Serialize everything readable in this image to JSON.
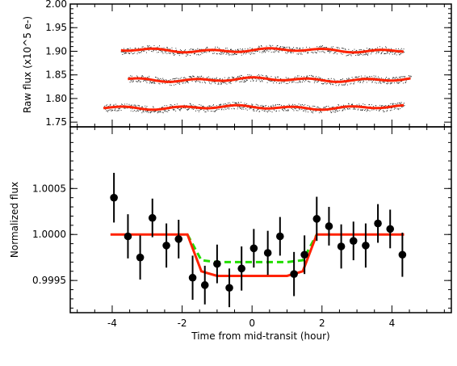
{
  "chart_data": [
    {
      "type": "scatter",
      "panel": "top",
      "ylabel": "Raw flux (x10^5 e-)",
      "ylim": [
        1.74,
        2.0
      ],
      "xlim": [
        -5.2,
        5.7
      ],
      "yticks": [
        "1.75",
        "1.80",
        "1.85",
        "1.90",
        "1.95",
        "2.00"
      ],
      "yticks_values": [
        1.75,
        1.8,
        1.85,
        1.9,
        1.95,
        2.0
      ],
      "series": [
        {
          "x_range": [
            -3.75,
            4.35
          ],
          "y_mean": 1.902
        },
        {
          "x_range": [
            -3.55,
            4.55
          ],
          "y_mean": 1.84
        },
        {
          "x_range": [
            -4.25,
            4.35
          ],
          "y_mean": 1.781
        }
      ],
      "colors": {
        "points": "#000000",
        "model": "#ff2200"
      }
    },
    {
      "type": "scatter",
      "panel": "bottom",
      "xlabel": "Time from mid-transit (hour)",
      "ylabel": "Normalized flux",
      "xlim": [
        -5.2,
        5.7
      ],
      "ylim": [
        0.99915,
        1.00117
      ],
      "xticks": [
        "-4",
        "-2",
        "0",
        "2",
        "4"
      ],
      "xticks_values": [
        -4,
        -2,
        0,
        2,
        4
      ],
      "yticks": [
        "0.9995",
        "1.0000",
        "1.0005"
      ],
      "yticks_values": [
        0.9995,
        1.0,
        1.0005
      ],
      "points": [
        {
          "x": -3.95,
          "y": 1.0004,
          "err": 0.00027
        },
        {
          "x": -3.55,
          "y": 0.99998,
          "err": 0.00024
        },
        {
          "x": -3.2,
          "y": 0.99975,
          "err": 0.00024
        },
        {
          "x": -2.85,
          "y": 1.00018,
          "err": 0.00021
        },
        {
          "x": -2.45,
          "y": 0.99988,
          "err": 0.00024
        },
        {
          "x": -2.1,
          "y": 0.99995,
          "err": 0.00021
        },
        {
          "x": -1.7,
          "y": 0.99953,
          "err": 0.00024
        },
        {
          "x": -1.35,
          "y": 0.99945,
          "err": 0.00021
        },
        {
          "x": -1.0,
          "y": 0.99968,
          "err": 0.00021
        },
        {
          "x": -0.65,
          "y": 0.99942,
          "err": 0.00021
        },
        {
          "x": -0.3,
          "y": 0.99963,
          "err": 0.00024
        },
        {
          "x": 0.05,
          "y": 0.99985,
          "err": 0.00021
        },
        {
          "x": 0.45,
          "y": 0.9998,
          "err": 0.00024
        },
        {
          "x": 0.8,
          "y": 0.99998,
          "err": 0.00021
        },
        {
          "x": 1.2,
          "y": 0.99957,
          "err": 0.00024
        },
        {
          "x": 1.5,
          "y": 0.99978,
          "err": 0.00021
        },
        {
          "x": 1.85,
          "y": 1.00017,
          "err": 0.00024
        },
        {
          "x": 2.2,
          "y": 1.00009,
          "err": 0.00021
        },
        {
          "x": 2.55,
          "y": 0.99987,
          "err": 0.00024
        },
        {
          "x": 2.9,
          "y": 0.99993,
          "err": 0.00021
        },
        {
          "x": 3.25,
          "y": 0.99988,
          "err": 0.00024
        },
        {
          "x": 3.6,
          "y": 1.00012,
          "err": 0.00021
        },
        {
          "x": 3.95,
          "y": 1.00006,
          "err": 0.00021
        },
        {
          "x": 4.3,
          "y": 0.99978,
          "err": 0.00024
        }
      ],
      "model_red": [
        [
          -4.05,
          1.0
        ],
        [
          -1.85,
          1.0
        ],
        [
          -1.45,
          0.9996
        ],
        [
          -1.0,
          0.99955
        ],
        [
          1.0,
          0.99955
        ],
        [
          1.45,
          0.9996
        ],
        [
          1.85,
          1.0
        ],
        [
          4.35,
          1.0
        ]
      ],
      "model_green": [
        [
          -1.85,
          1.0
        ],
        [
          -1.45,
          0.99972
        ],
        [
          -1.0,
          0.9997
        ],
        [
          1.0,
          0.9997
        ],
        [
          1.45,
          0.99972
        ],
        [
          1.85,
          1.0
        ]
      ],
      "colors": {
        "points": "#000000",
        "model_red": "#ff2200",
        "model_green": "#22dd00"
      }
    }
  ]
}
